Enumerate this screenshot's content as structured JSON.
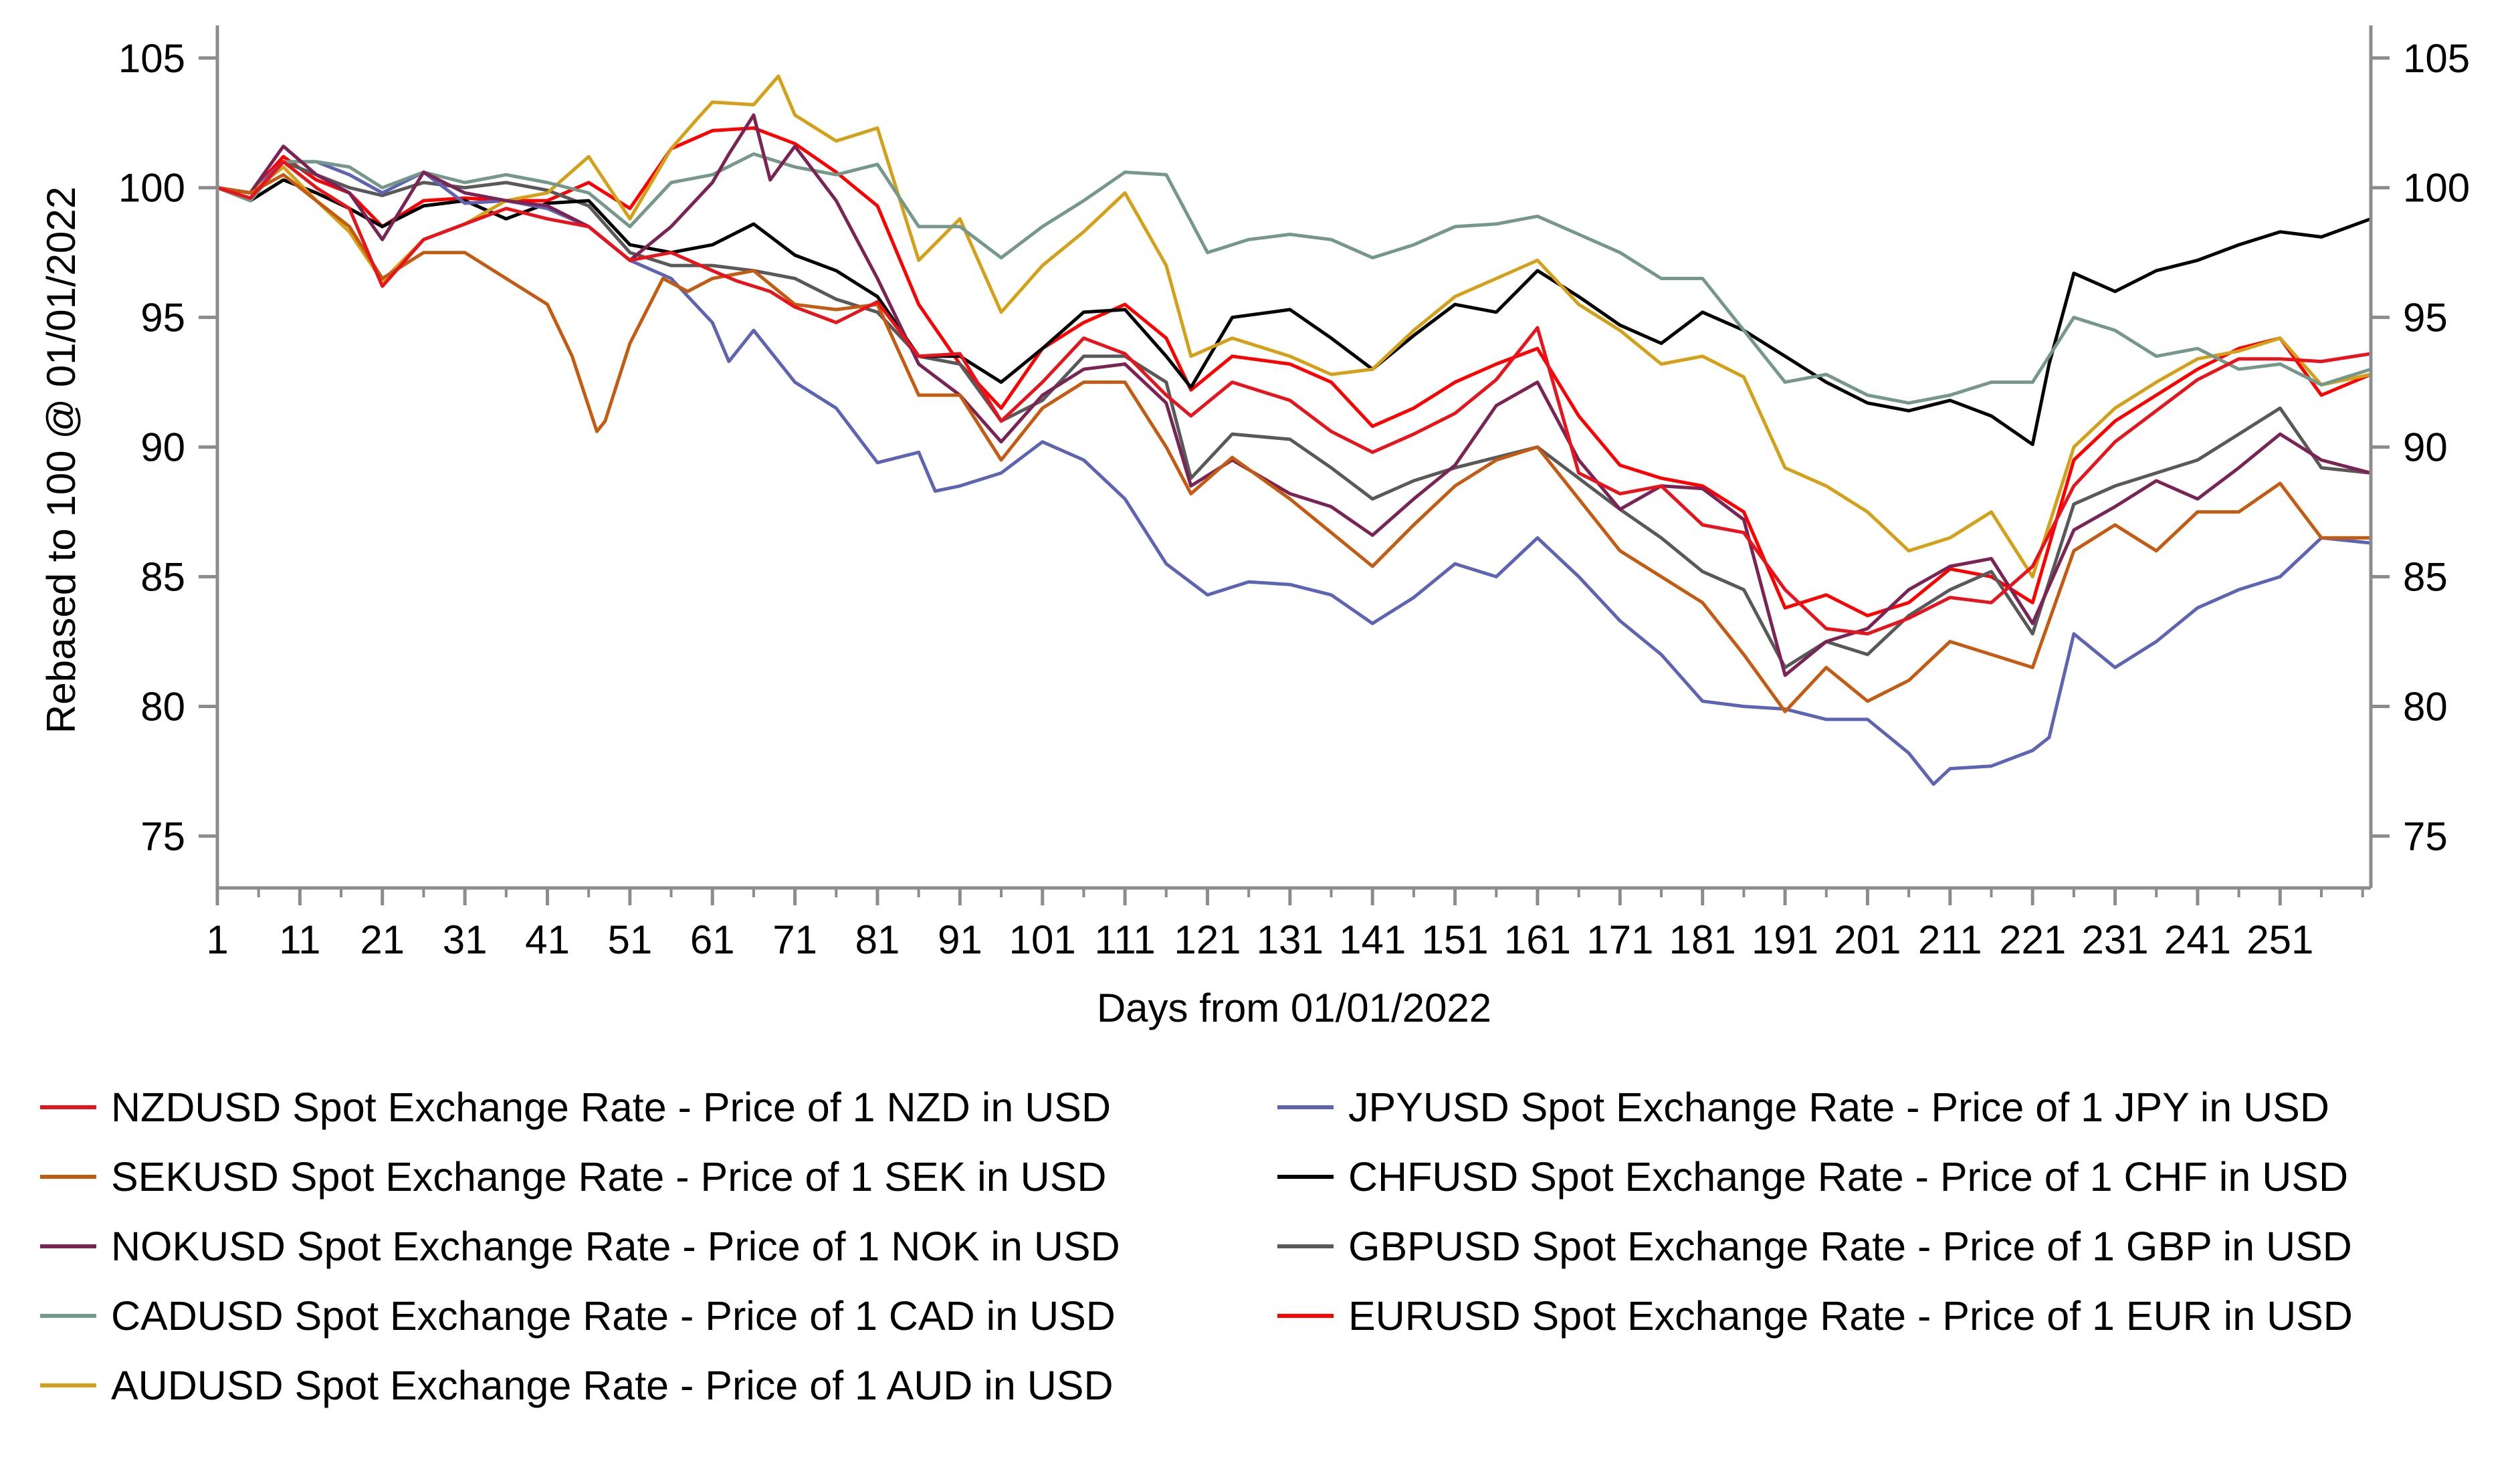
{
  "chart_data": {
    "type": "line",
    "xlabel": "Days from 01/01/2022",
    "ylabel": "Rebased to 100 @ 01/01/2022",
    "ylim": [
      73,
      106
    ],
    "xlim": [
      1,
      262
    ],
    "y_ticks": [
      75,
      80,
      85,
      90,
      95,
      100,
      105
    ],
    "x_ticks": [
      1,
      11,
      21,
      31,
      41,
      51,
      61,
      71,
      81,
      91,
      101,
      111,
      121,
      131,
      141,
      151,
      161,
      171,
      181,
      191,
      201,
      211,
      221,
      231,
      241,
      251
    ],
    "secondary_y_axis": true,
    "grid": false,
    "legend_position": "bottom",
    "series": [
      {
        "name": "NZDUSD Spot Exchange Rate - Price of 1 NZD in USD",
        "color": "#e8131b",
        "x": [
          1,
          5,
          9,
          13,
          17,
          21,
          26,
          31,
          36,
          41,
          46,
          51,
          56,
          61,
          64,
          68,
          71,
          76,
          81,
          86,
          91,
          96,
          101,
          106,
          111,
          116,
          119,
          124,
          131,
          136,
          141,
          146,
          151,
          156,
          161,
          166,
          171,
          176,
          181,
          186,
          191,
          196,
          201,
          206,
          211,
          216,
          221,
          226,
          231,
          236,
          241,
          246,
          251,
          256,
          262
        ],
        "values": [
          100,
          99.6,
          101,
          100,
          99.2,
          96.2,
          98,
          98.6,
          99.2,
          98.8,
          98.5,
          97.2,
          97.5,
          96.8,
          96.4,
          96,
          95.4,
          94.8,
          95.6,
          93.5,
          93.6,
          91,
          92.5,
          94.2,
          93.6,
          92,
          91.2,
          92.5,
          91.8,
          90.6,
          89.8,
          90.5,
          91.3,
          92.6,
          94.6,
          89,
          88.2,
          88.5,
          87,
          86.7,
          84.5,
          83,
          82.8,
          83.4,
          84.2,
          84,
          85.4,
          88.5,
          90.2,
          91.4,
          92.6,
          93.4,
          93.4,
          93.3,
          93.6
        ]
      },
      {
        "name": "SEKUSD Spot Exchange Rate - Price of 1 SEK in USD",
        "color": "#c55a11",
        "x": [
          1,
          5,
          9,
          13,
          17,
          21,
          26,
          31,
          36,
          41,
          44,
          47,
          48,
          51,
          55,
          58,
          61,
          66,
          71,
          76,
          81,
          86,
          91,
          96,
          101,
          106,
          111,
          116,
          119,
          124,
          131,
          136,
          141,
          146,
          151,
          156,
          161,
          166,
          171,
          176,
          181,
          186,
          191,
          196,
          201,
          206,
          211,
          216,
          221,
          226,
          231,
          236,
          241,
          246,
          251,
          256,
          262
        ],
        "values": [
          100,
          99.8,
          100.5,
          99.5,
          98.5,
          96.5,
          97.5,
          97.5,
          96.5,
          95.5,
          93.5,
          90.6,
          91,
          94,
          96.5,
          96,
          96.5,
          96.8,
          95.5,
          95.3,
          95.5,
          92,
          92,
          89.5,
          91.5,
          92.5,
          92.5,
          90,
          88.2,
          89.6,
          88,
          86.7,
          85.4,
          87,
          88.5,
          89.5,
          90,
          88,
          86,
          85,
          84,
          82,
          79.8,
          81.5,
          80.2,
          81,
          82.5,
          82,
          81.5,
          86,
          87,
          86,
          87.5,
          87.5,
          88.6,
          86.5,
          86.5
        ]
      },
      {
        "name": "NOKUSD Spot Exchange Rate - Price of 1 NOK in USD",
        "color": "#7b2354",
        "x": [
          1,
          5,
          9,
          13,
          17,
          21,
          26,
          31,
          36,
          41,
          46,
          51,
          56,
          61,
          63,
          66,
          68,
          71,
          76,
          81,
          86,
          91,
          96,
          101,
          106,
          111,
          116,
          119,
          124,
          131,
          136,
          141,
          146,
          151,
          156,
          161,
          166,
          171,
          176,
          181,
          186,
          191,
          196,
          201,
          206,
          211,
          216,
          221,
          226,
          231,
          236,
          241,
          246,
          251,
          256,
          262
        ],
        "values": [
          100,
          99.8,
          101.6,
          100.5,
          99.8,
          98,
          100.6,
          99.8,
          99.5,
          99.3,
          98.5,
          97.2,
          98.5,
          100.2,
          101.3,
          102.8,
          100.3,
          101.6,
          99.5,
          96.5,
          93.2,
          92,
          90.2,
          92,
          93,
          93.2,
          91.7,
          88.5,
          89.5,
          88.2,
          87.7,
          86.6,
          88,
          89.3,
          91.6,
          92.5,
          89.5,
          87.6,
          88.5,
          88.4,
          87.2,
          81.2,
          82.5,
          83,
          84.5,
          85.4,
          85.7,
          83.2,
          86.8,
          87.7,
          88.7,
          88,
          89.2,
          90.5,
          89.5,
          89
        ]
      },
      {
        "name": "CADUSD Spot Exchange Rate - Price of 1 CAD in USD",
        "color": "#75988a",
        "x": [
          1,
          5,
          9,
          13,
          17,
          21,
          26,
          31,
          36,
          41,
          46,
          51,
          56,
          61,
          66,
          71,
          76,
          81,
          86,
          91,
          96,
          101,
          106,
          111,
          116,
          121,
          126,
          131,
          136,
          141,
          146,
          151,
          156,
          161,
          166,
          171,
          176,
          181,
          186,
          191,
          196,
          201,
          206,
          211,
          216,
          221,
          226,
          231,
          236,
          241,
          246,
          251,
          256,
          262
        ],
        "values": [
          100,
          99.5,
          101,
          101,
          100.8,
          100,
          100.6,
          100.2,
          100.5,
          100.2,
          99.8,
          98.5,
          100.2,
          100.5,
          101.3,
          100.8,
          100.5,
          100.9,
          98.5,
          98.5,
          97.3,
          98.5,
          99.5,
          100.6,
          100.5,
          97.5,
          98,
          98.2,
          98,
          97.3,
          97.8,
          98.5,
          98.6,
          98.9,
          98.2,
          97.5,
          96.5,
          96.5,
          94.5,
          92.5,
          92.8,
          92,
          91.7,
          92,
          92.5,
          92.5,
          95,
          94.5,
          93.5,
          93.8,
          93,
          93.2,
          92.4,
          93
        ]
      },
      {
        "name": "AUDUSD Spot Exchange Rate - Price of 1 AUD in USD",
        "color": "#d4a017",
        "x": [
          1,
          5,
          9,
          13,
          17,
          21,
          26,
          31,
          36,
          41,
          46,
          51,
          56,
          59,
          61,
          66,
          69,
          71,
          76,
          81,
          86,
          91,
          96,
          101,
          106,
          111,
          116,
          119,
          124,
          131,
          136,
          141,
          146,
          151,
          156,
          161,
          166,
          171,
          176,
          181,
          186,
          191,
          196,
          201,
          206,
          211,
          216,
          221,
          226,
          231,
          236,
          241,
          246,
          251,
          256,
          262
        ],
        "values": [
          100,
          99.8,
          100.8,
          99.5,
          98.3,
          96.4,
          98,
          98.6,
          99.5,
          99.8,
          101.2,
          98.8,
          101.5,
          102.6,
          103.3,
          103.2,
          104.3,
          102.8,
          101.8,
          102.3,
          97.2,
          98.8,
          95.2,
          97,
          98.3,
          99.8,
          97,
          93.5,
          94.2,
          93.5,
          92.8,
          93,
          94.5,
          95.8,
          96.5,
          97.2,
          95.5,
          94.5,
          93.2,
          93.5,
          92.7,
          89.2,
          88.5,
          87.5,
          86,
          86.5,
          87.5,
          85,
          90,
          91.5,
          92.5,
          93.4,
          93.7,
          94.2,
          92.4,
          92.8
        ]
      },
      {
        "name": "JPYUSD Spot Exchange Rate - Price of 1 JPY in USD",
        "color": "#5e64b4",
        "x": [
          1,
          5,
          9,
          13,
          17,
          21,
          26,
          31,
          36,
          41,
          46,
          51,
          56,
          61,
          63,
          66,
          71,
          76,
          81,
          86,
          88,
          91,
          96,
          101,
          106,
          111,
          116,
          121,
          126,
          131,
          136,
          141,
          146,
          151,
          156,
          161,
          166,
          171,
          176,
          181,
          186,
          191,
          196,
          201,
          206,
          209,
          211,
          216,
          221,
          223,
          226,
          231,
          236,
          241,
          246,
          251,
          256,
          262
        ],
        "values": [
          100,
          99.8,
          101,
          101,
          100.5,
          99.8,
          100.6,
          99.4,
          99.5,
          99.2,
          98.5,
          97.2,
          96.5,
          94.8,
          93.3,
          94.5,
          92.5,
          91.5,
          89.4,
          89.8,
          88.3,
          88.5,
          89,
          90.2,
          89.5,
          88,
          85.5,
          84.3,
          84.8,
          84.7,
          84.3,
          83.2,
          84.2,
          85.5,
          85,
          86.5,
          85,
          83.3,
          82,
          80.2,
          80,
          79.9,
          79.5,
          79.5,
          78.2,
          77,
          77.6,
          77.7,
          78.3,
          78.8,
          82.8,
          81.5,
          82.5,
          83.8,
          84.5,
          85,
          86.5,
          86.3
        ]
      },
      {
        "name": "CHFUSD Spot Exchange Rate - Price of 1 CHF in USD",
        "color": "#000000",
        "x": [
          1,
          5,
          9,
          13,
          17,
          21,
          26,
          31,
          36,
          41,
          46,
          51,
          56,
          61,
          66,
          71,
          76,
          81,
          86,
          91,
          96,
          101,
          106,
          111,
          116,
          119,
          124,
          131,
          136,
          141,
          146,
          151,
          156,
          161,
          166,
          171,
          176,
          181,
          186,
          191,
          196,
          201,
          206,
          211,
          216,
          221,
          223,
          226,
          231,
          236,
          241,
          246,
          251,
          256,
          262
        ],
        "values": [
          100,
          99.5,
          100.3,
          99.8,
          99.2,
          98.5,
          99.3,
          99.5,
          98.8,
          99.4,
          99.5,
          97.8,
          97.5,
          97.8,
          98.6,
          97.4,
          96.8,
          95.8,
          93.5,
          93.5,
          92.5,
          93.8,
          95.2,
          95.3,
          93.5,
          92.3,
          95,
          95.3,
          94.2,
          93,
          94.3,
          95.5,
          95.2,
          96.8,
          95.8,
          94.7,
          94,
          95.2,
          94.5,
          93.5,
          92.5,
          91.7,
          91.4,
          91.8,
          91.2,
          90.1,
          93.2,
          96.7,
          96,
          96.8,
          97.2,
          97.8,
          98.3,
          98.1,
          98.8
        ]
      },
      {
        "name": "GBPUSD Spot Exchange Rate - Price of 1 GBP in USD",
        "color": "#595959",
        "x": [
          1,
          5,
          9,
          13,
          17,
          21,
          26,
          31,
          36,
          41,
          46,
          51,
          56,
          61,
          66,
          71,
          76,
          81,
          86,
          91,
          96,
          101,
          106,
          111,
          116,
          119,
          124,
          131,
          136,
          141,
          146,
          151,
          156,
          161,
          166,
          171,
          176,
          181,
          186,
          191,
          196,
          201,
          206,
          211,
          216,
          221,
          226,
          231,
          236,
          241,
          246,
          251,
          256,
          262
        ],
        "values": [
          100,
          99.8,
          101,
          100.5,
          100,
          99.7,
          100.2,
          100,
          100.2,
          99.9,
          99.3,
          97.5,
          97,
          97,
          96.8,
          96.5,
          95.7,
          95.2,
          93.5,
          93.2,
          91,
          91.8,
          93.5,
          93.5,
          92.5,
          88.8,
          90.5,
          90.3,
          89.2,
          88,
          88.7,
          89.2,
          89.6,
          90,
          88.8,
          87.6,
          86.5,
          85.2,
          84.5,
          81.5,
          82.5,
          82,
          83.5,
          84.5,
          85.2,
          82.8,
          87.8,
          88.5,
          89,
          89.5,
          90.5,
          91.5,
          89.2,
          89
        ]
      },
      {
        "name": "EURUSD Spot Exchange Rate - Price of 1 EUR in USD",
        "color": "#ff0000",
        "x": [
          1,
          5,
          9,
          13,
          17,
          21,
          26,
          31,
          36,
          41,
          46,
          51,
          56,
          61,
          66,
          71,
          76,
          81,
          86,
          91,
          96,
          101,
          106,
          111,
          116,
          119,
          124,
          131,
          136,
          141,
          146,
          151,
          156,
          161,
          166,
          171,
          176,
          181,
          186,
          191,
          196,
          201,
          206,
          211,
          216,
          221,
          226,
          231,
          236,
          241,
          246,
          251,
          256,
          262
        ],
        "values": [
          100,
          99.8,
          101.2,
          100.3,
          99.8,
          98.5,
          99.5,
          99.6,
          99.5,
          99.5,
          100.2,
          99.2,
          101.5,
          102.2,
          102.3,
          101.7,
          100.6,
          99.3,
          95.5,
          93.2,
          91.5,
          93.8,
          94.8,
          95.5,
          94.2,
          92.2,
          93.5,
          93.2,
          92.5,
          90.8,
          91.5,
          92.5,
          93.2,
          93.8,
          91.2,
          89.3,
          88.8,
          88.5,
          87.5,
          83.8,
          84.3,
          83.5,
          84,
          85.3,
          85,
          84,
          89.5,
          91,
          92,
          93,
          93.8,
          94.2,
          92,
          92.8
        ]
      }
    ]
  }
}
